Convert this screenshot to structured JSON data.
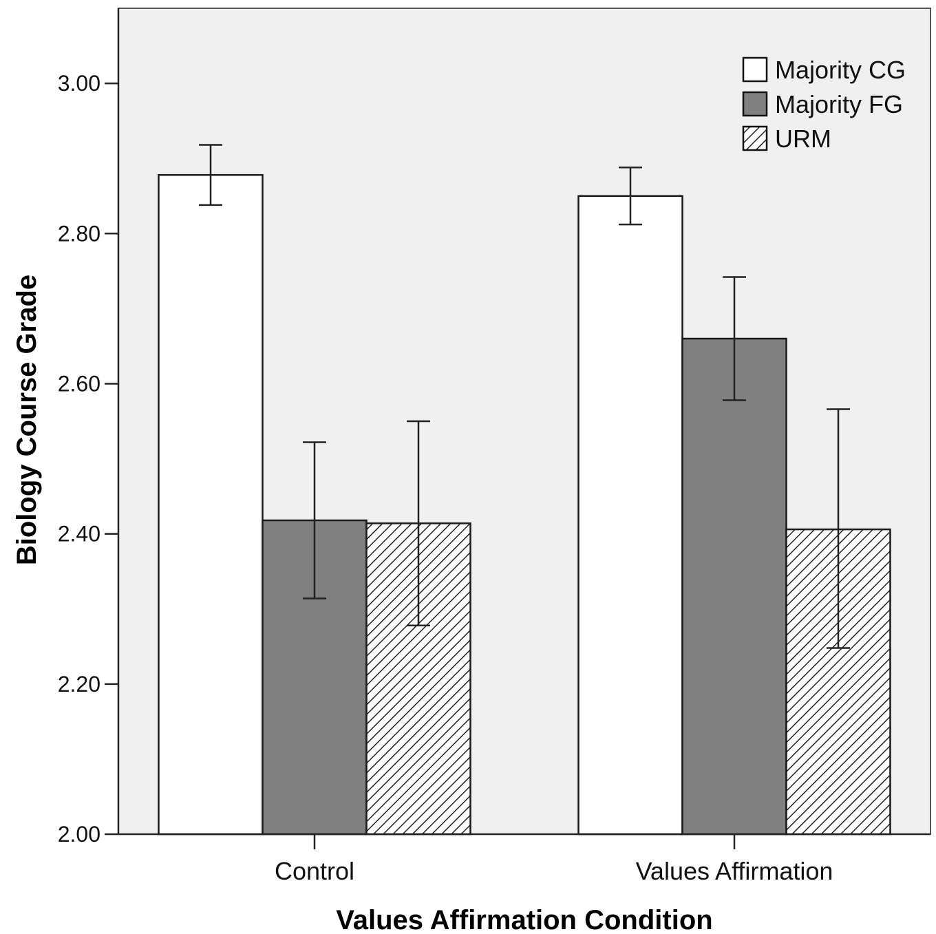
{
  "chart_data": {
    "type": "bar",
    "xlabel": "Values Affirmation Condition",
    "ylabel": "Biology Course Grade",
    "ylim": [
      2.0,
      3.1
    ],
    "yticks": [
      "2.00",
      "2.20",
      "2.40",
      "2.60",
      "2.80",
      "3.00"
    ],
    "categories": [
      "Control",
      "Values Affirmation"
    ],
    "series": [
      {
        "name": "Majority CG",
        "values": [
          2.878,
          2.85
        ],
        "err_low": [
          2.838,
          2.812
        ],
        "err_high": [
          2.918,
          2.888
        ],
        "fill": "#ffffff",
        "pattern": "none"
      },
      {
        "name": "Majority FG",
        "values": [
          2.418,
          2.66
        ],
        "err_low": [
          2.314,
          2.578
        ],
        "err_high": [
          2.522,
          2.742
        ],
        "fill": "#808080",
        "pattern": "none"
      },
      {
        "name": "URM",
        "values": [
          2.414,
          2.406
        ],
        "err_low": [
          2.278,
          2.248
        ],
        "err_high": [
          2.55,
          2.566
        ],
        "fill": "#ffffff",
        "pattern": "diagonal-hatch"
      }
    ],
    "legend_position": "top-right",
    "grid": false,
    "colors": {
      "plot_background": "#f0f0f0",
      "bar_outline": "#1a1a1a",
      "hatch": "#222222"
    }
  }
}
